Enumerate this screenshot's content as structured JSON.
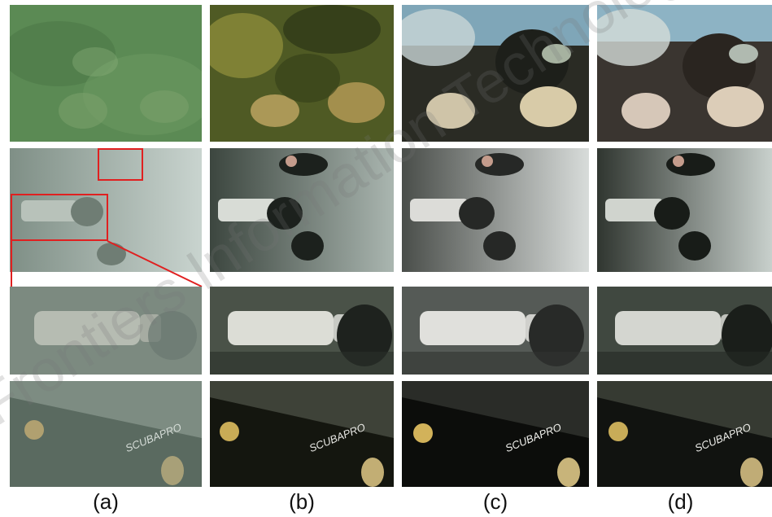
{
  "figure": {
    "columns": [
      {
        "label": "(a)"
      },
      {
        "label": "(b)"
      },
      {
        "label": "(c)"
      },
      {
        "label": "(d)"
      }
    ],
    "rows": [
      {
        "content": "reef-fish"
      },
      {
        "content": "diver-scene"
      },
      {
        "content": "tank-closeup"
      },
      {
        "content": "fin-closeup"
      }
    ],
    "fin_text": "SCUBAPRO",
    "watermark": "Frontiers Information Technology",
    "colors": {
      "zoom_box": "#e02020"
    }
  }
}
